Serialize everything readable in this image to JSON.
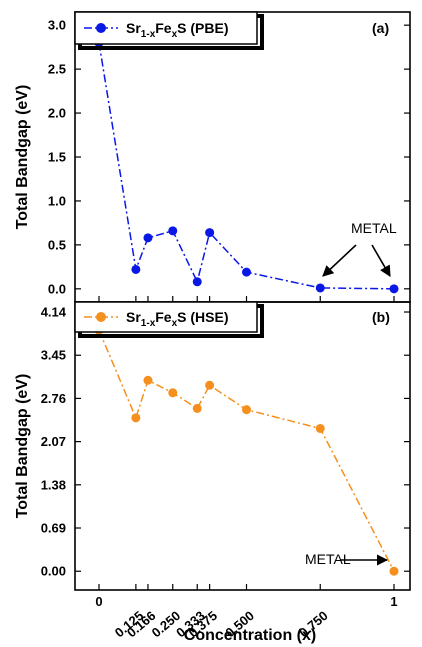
{
  "chart_data": [
    {
      "type": "line",
      "panel_label": "(a)",
      "legend": {
        "base": "Sr",
        "sub1": "1-x",
        "mid": "Fe",
        "sub2": "x",
        "tail": "S (PBE)"
      },
      "color": "#0a18e6",
      "line_style": "dash-dot",
      "ylabel": "Total Bandgap (eV)",
      "ylim": [
        -0.15,
        3.15
      ],
      "yticks": [
        "0.0",
        "0.5",
        "1.0",
        "1.5",
        "2.0",
        "2.5",
        "3.0"
      ],
      "x": [
        0,
        0.125,
        0.166,
        0.25,
        0.333,
        0.375,
        0.5,
        0.75,
        1
      ],
      "y": [
        2.8,
        0.22,
        0.58,
        0.66,
        0.08,
        0.64,
        0.19,
        0.01,
        0.0
      ],
      "annotation": "METAL"
    },
    {
      "type": "line",
      "panel_label": "(b)",
      "legend": {
        "base": "Sr",
        "sub1": "1-x",
        "mid": "Fe",
        "sub2": "x",
        "tail": "S (HSE)"
      },
      "color": "#f5901e",
      "line_style": "dash-dot",
      "ylabel": "Total Bandgap (eV)",
      "ylim": [
        -0.3,
        4.3
      ],
      "yticks": [
        "0.00",
        "0.69",
        "1.38",
        "2.07",
        "2.76",
        "3.45",
        "4.14"
      ],
      "x": [
        0,
        0.125,
        0.166,
        0.25,
        0.333,
        0.375,
        0.5,
        0.75,
        1
      ],
      "y": [
        3.85,
        2.45,
        3.05,
        2.85,
        2.6,
        2.97,
        2.58,
        2.28,
        0.0
      ],
      "annotation": "METAL"
    }
  ],
  "xaxis": {
    "label": "Concentration (x)",
    "ticks": [
      "0",
      "0.125",
      "0.166",
      "0.250",
      "0.333",
      "0.375",
      "0.500",
      "0.750",
      "1"
    ],
    "tick_values": [
      0,
      0.125,
      0.166,
      0.25,
      0.333,
      0.375,
      0.5,
      0.75,
      1
    ]
  }
}
